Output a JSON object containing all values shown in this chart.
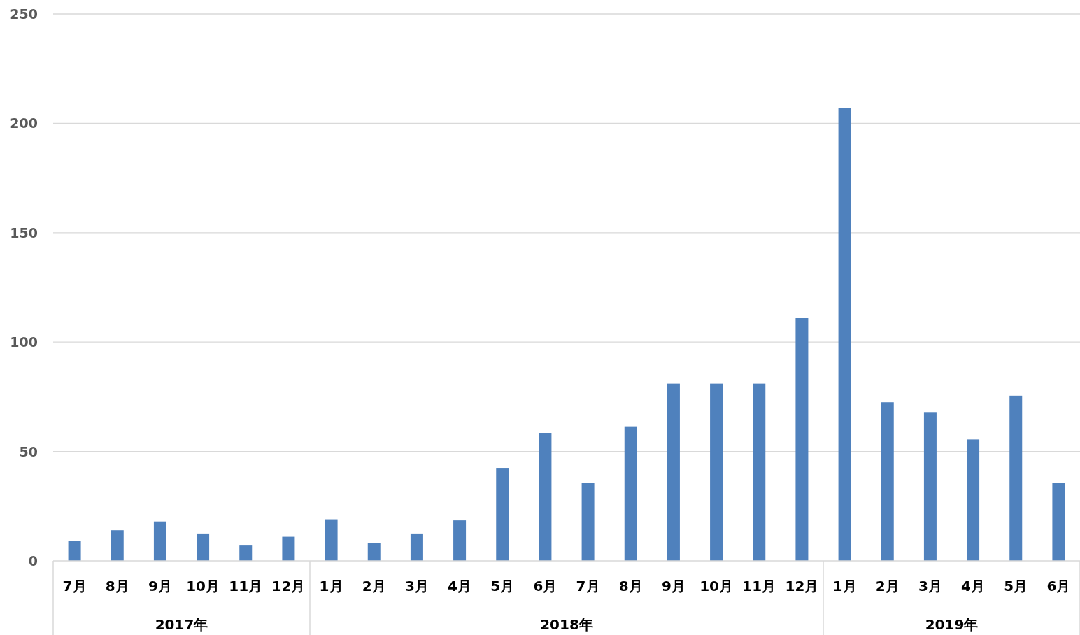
{
  "chart_data": {
    "type": "bar",
    "categories": [
      "7月",
      "8月",
      "9月",
      "10月",
      "11月",
      "12月",
      "1月",
      "2月",
      "3月",
      "4月",
      "5月",
      "6月",
      "7月",
      "8月",
      "9月",
      "10月",
      "11月",
      "12月",
      "1月",
      "2月",
      "3月",
      "4月",
      "5月",
      "6月"
    ],
    "values": [
      9,
      14,
      18,
      12.5,
      7,
      11,
      19,
      8,
      12.5,
      18.5,
      42.5,
      58.5,
      35.5,
      61.5,
      81,
      81,
      81,
      111,
      207,
      72.5,
      68,
      55.5,
      75.5,
      35.5
    ],
    "color": "#4f81bd",
    "ylim": [
      0,
      250
    ],
    "yticks": [
      0,
      50,
      100,
      150,
      200,
      250
    ],
    "grid": "y",
    "annotations": [
      "2017年",
      "2018年",
      "2019年"
    ]
  }
}
